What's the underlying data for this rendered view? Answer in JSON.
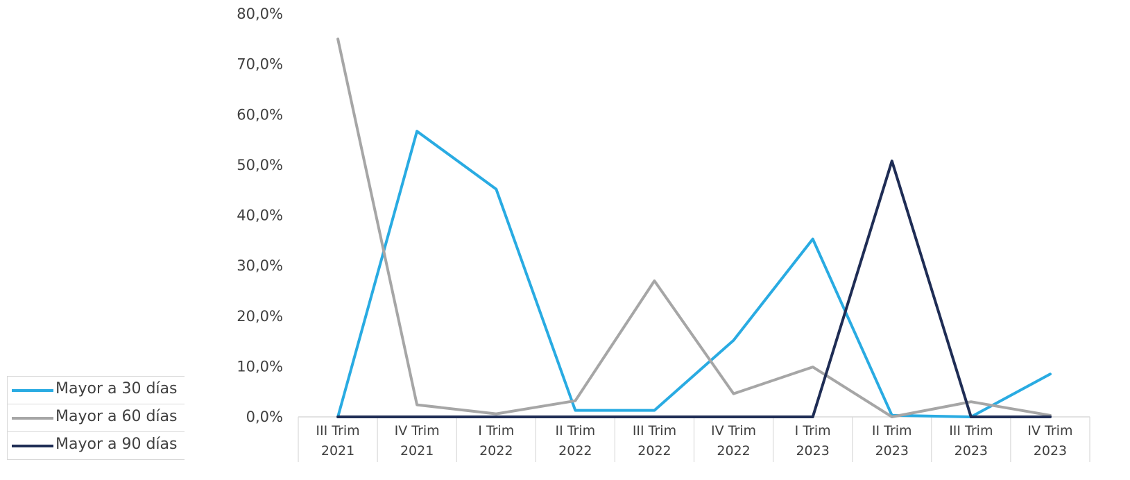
{
  "chart_data": {
    "type": "line",
    "categories": [
      [
        "III Trim",
        "2021"
      ],
      [
        "IV Trim",
        "2021"
      ],
      [
        "I Trim",
        "2022"
      ],
      [
        "II Trim",
        "2022"
      ],
      [
        "III Trim",
        "2022"
      ],
      [
        "IV Trim",
        "2022"
      ],
      [
        "I Trim",
        "2023"
      ],
      [
        "II Trim",
        "2023"
      ],
      [
        "III Trim",
        "2023"
      ],
      [
        "IV Trim",
        "2023"
      ]
    ],
    "y_ticks": [
      "0,0%",
      "10,0%",
      "20,0%",
      "30,0%",
      "40,0%",
      "50,0%",
      "60,0%",
      "70,0%",
      "80,0%"
    ],
    "ylim": [
      0,
      80
    ],
    "series": [
      {
        "name": "Mayor a 30 días",
        "color": "#29abe2",
        "values": [
          0,
          56.7,
          45.2,
          1.3,
          1.3,
          15.2,
          35.3,
          0.3,
          0,
          8.5
        ]
      },
      {
        "name": "Mayor a 60 días",
        "color": "#a6a6a6",
        "values": [
          75.0,
          2.4,
          0.6,
          3.2,
          27.0,
          4.6,
          9.9,
          0,
          3.0,
          0.3
        ]
      },
      {
        "name": "Mayor a 90 días",
        "color": "#1f2d55",
        "values": [
          0,
          0,
          0,
          0,
          0,
          0,
          0,
          50.8,
          0,
          0
        ]
      }
    ],
    "grid": false,
    "legend_position": "bottom-left"
  }
}
